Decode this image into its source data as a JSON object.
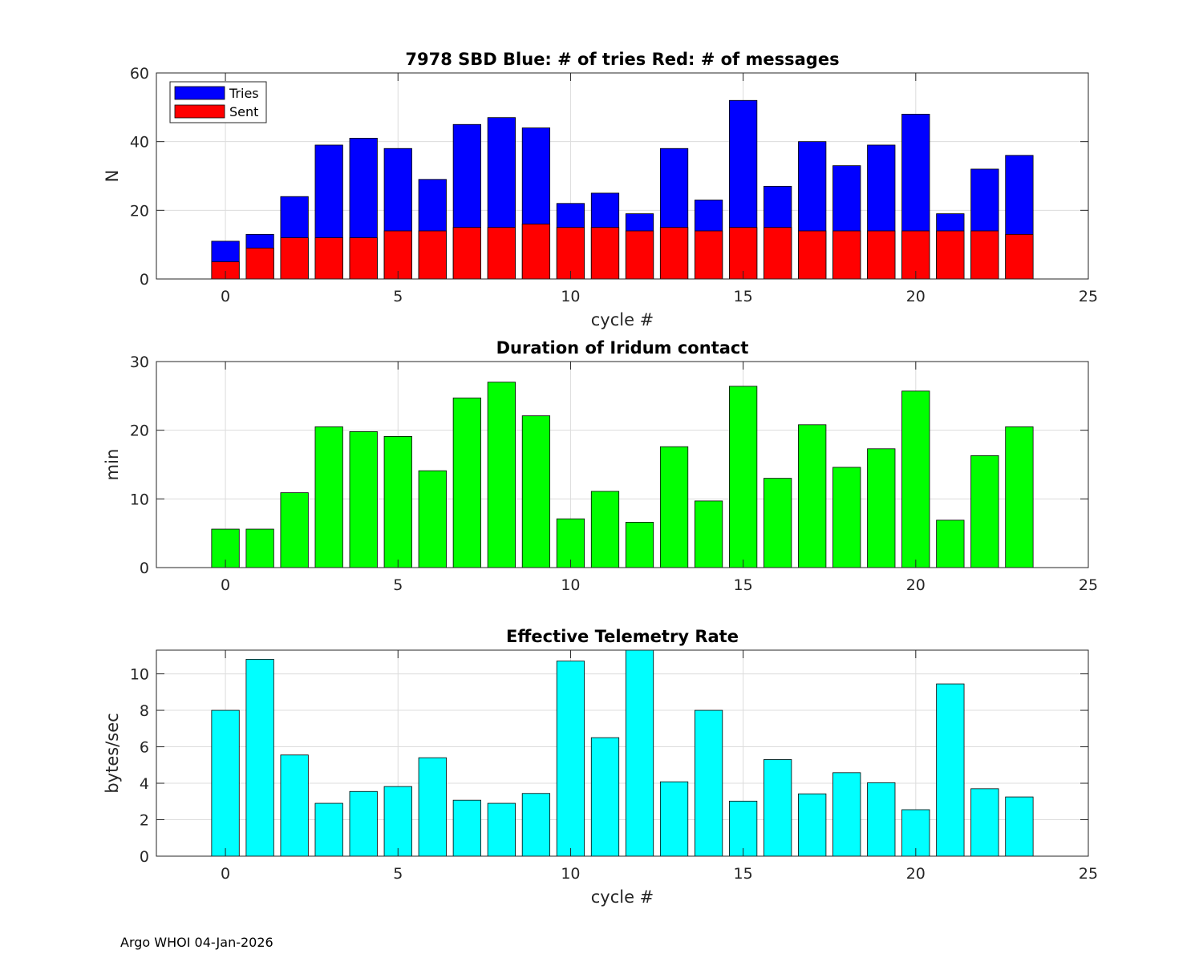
{
  "footer": "Argo WHOI 04-Jan-2026",
  "colors": {
    "tries": "#0000ff",
    "sent": "#ff0000",
    "duration": "#00ff00",
    "rate": "#00ffff",
    "edge": "#000000",
    "grid": "#dcdcdc",
    "axis": "#262626"
  },
  "chart_data": [
    {
      "type": "bar",
      "stacked": false,
      "title": "7978 SBD  Blue: # of tries   Red: # of messages",
      "xlabel": "cycle #",
      "ylabel": "N",
      "xlim": [
        -2,
        25
      ],
      "ylim": [
        0,
        60
      ],
      "xticks": [
        0,
        5,
        10,
        15,
        20,
        25
      ],
      "yticks": [
        0,
        20,
        40,
        60
      ],
      "grid": true,
      "legend": {
        "position": "top-left",
        "entries": [
          "Tries",
          "Sent"
        ]
      },
      "x": [
        0,
        1,
        2,
        3,
        4,
        5,
        6,
        7,
        8,
        9,
        10,
        11,
        12,
        13,
        14,
        15,
        16,
        17,
        18,
        19,
        20,
        21,
        22,
        23
      ],
      "series": [
        {
          "name": "Tries",
          "color_key": "tries",
          "values": [
            11,
            13,
            24,
            39,
            41,
            38,
            29,
            45,
            47,
            44,
            22,
            25,
            19,
            38,
            23,
            52,
            27,
            40,
            33,
            39,
            48,
            19,
            32,
            36
          ]
        },
        {
          "name": "Sent",
          "color_key": "sent",
          "values": [
            5,
            9,
            12,
            12,
            12,
            14,
            14,
            15,
            15,
            16,
            15,
            15,
            14,
            15,
            14,
            15,
            15,
            14,
            14,
            14,
            14,
            14,
            14,
            13
          ]
        }
      ]
    },
    {
      "type": "bar",
      "title": "Duration of Iridum contact",
      "xlabel": "",
      "ylabel": "min",
      "xlim": [
        -2,
        25
      ],
      "ylim": [
        0,
        30
      ],
      "xticks": [
        0,
        5,
        10,
        15,
        20,
        25
      ],
      "yticks": [
        0,
        10,
        20,
        30
      ],
      "grid": true,
      "x": [
        0,
        1,
        2,
        3,
        4,
        5,
        6,
        7,
        8,
        9,
        10,
        11,
        12,
        13,
        14,
        15,
        16,
        17,
        18,
        19,
        20,
        21,
        22,
        23
      ],
      "series": [
        {
          "name": "Duration",
          "color_key": "duration",
          "values": [
            5.6,
            5.6,
            10.9,
            20.5,
            19.8,
            19.1,
            14.1,
            24.7,
            27.0,
            22.1,
            7.1,
            11.1,
            6.6,
            17.6,
            9.7,
            26.4,
            13.0,
            20.8,
            14.6,
            17.3,
            25.7,
            6.9,
            16.3,
            20.5
          ]
        }
      ]
    },
    {
      "type": "bar",
      "title": "Effective Telemetry Rate",
      "xlabel": "cycle #",
      "ylabel": "bytes/sec",
      "xlim": [
        -2,
        25
      ],
      "ylim": [
        0,
        11.3
      ],
      "xticks": [
        0,
        5,
        10,
        15,
        20,
        25
      ],
      "yticks": [
        0,
        2,
        4,
        6,
        8,
        10
      ],
      "grid": true,
      "x": [
        0,
        1,
        2,
        3,
        4,
        5,
        6,
        7,
        8,
        9,
        10,
        11,
        12,
        13,
        14,
        15,
        16,
        17,
        18,
        19,
        20,
        21,
        22,
        23
      ],
      "series": [
        {
          "name": "Rate",
          "color_key": "rate",
          "values": [
            8.0,
            10.8,
            5.55,
            2.9,
            3.55,
            3.82,
            5.4,
            3.07,
            2.9,
            3.44,
            10.7,
            6.5,
            11.3,
            4.08,
            8.0,
            3.02,
            5.3,
            3.42,
            4.58,
            4.03,
            2.55,
            9.45,
            3.7,
            3.25
          ]
        }
      ]
    }
  ]
}
